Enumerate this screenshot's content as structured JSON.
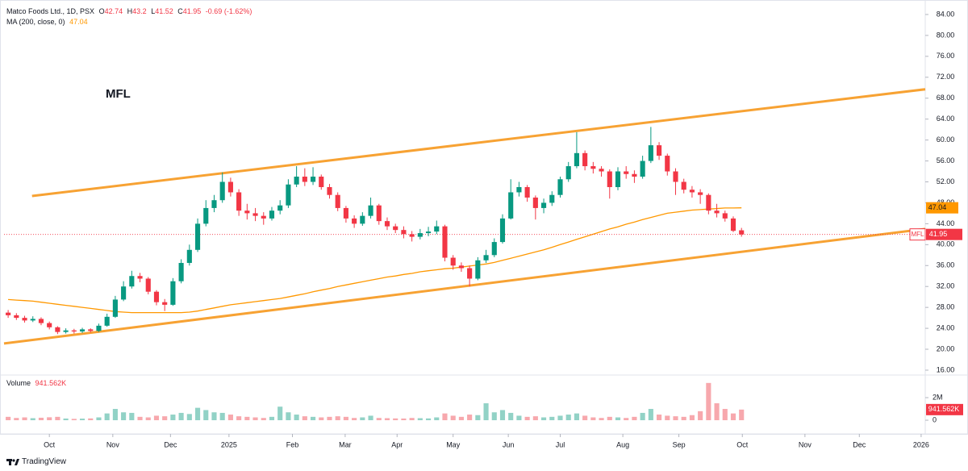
{
  "chart_data": {
    "type": "candlestick",
    "symbol_title": "Matco Foods Ltd., 1D, PSX",
    "symbol": "MFL",
    "ohlc_letters": [
      "O",
      "H",
      "L",
      "C"
    ],
    "change": -0.69,
    "change_pct": {
      "value": -1.62,
      "label": "(-1.62%)"
    },
    "ma_title": "MA (200, close, 0)",
    "volume_title": "Volume",
    "up_color": "#089981",
    "down_color": "#f23645",
    "volume_up_color": "#92d2c6",
    "volume_down_color": "#f7a8ad",
    "ma_color": "#ff9800",
    "trendline_color": "#f7a233",
    "open": [
      27.0,
      26.5,
      26.0,
      25.5,
      25.8,
      25.0,
      24.2,
      23.3,
      23.6,
      23.4,
      23.8,
      23.5,
      24.5,
      26.2,
      29.5,
      32.0,
      34.0,
      33.5,
      31.0,
      29.0,
      28.5,
      33.0,
      36.5,
      39.0,
      44.0,
      47.0,
      48.5,
      52.0,
      50.0,
      46.5,
      46.0,
      45.5,
      45.0,
      46.5,
      47.5,
      51.5,
      53.0,
      52.0,
      53.0,
      51.0,
      49.5,
      47.0,
      45.0,
      44.0,
      45.5,
      47.5,
      44.5,
      43.5,
      42.8,
      42.0,
      41.5,
      42.2,
      42.5,
      43.5,
      37.5,
      36.0,
      35.5,
      33.5,
      37.0,
      38.0,
      40.5,
      45.0,
      50.0,
      51.0,
      49.0,
      47.0,
      48.0,
      49.5,
      52.5,
      55.0,
      57.5,
      55.0,
      54.5,
      54.0,
      51.0,
      54.0,
      53.5,
      53.0,
      56.0,
      59.0,
      57.0,
      54.0,
      52.0,
      50.5,
      50.0,
      49.5,
      46.5,
      46.0,
      45.0,
      42.74
    ],
    "high": [
      27.5,
      26.9,
      26.4,
      26.3,
      26.1,
      25.3,
      24.4,
      24.0,
      23.9,
      24.1,
      24.0,
      24.9,
      26.8,
      30.2,
      33.0,
      35.0,
      34.6,
      33.8,
      31.3,
      29.6,
      33.6,
      37.2,
      40.0,
      45.0,
      48.5,
      49.5,
      53.8,
      52.8,
      50.6,
      47.8,
      47.0,
      46.2,
      47.2,
      48.5,
      52.5,
      55.0,
      54.6,
      54.8,
      53.4,
      51.6,
      50.0,
      47.4,
      45.6,
      46.2,
      49.0,
      47.8,
      45.2,
      44.0,
      43.5,
      42.6,
      43.0,
      43.4,
      44.6,
      43.8,
      38.0,
      36.6,
      36.0,
      37.6,
      39.0,
      41.2,
      45.8,
      52.5,
      52.0,
      51.4,
      49.4,
      48.8,
      50.2,
      53.0,
      55.8,
      61.5,
      58.0,
      55.8,
      55.0,
      54.4,
      54.8,
      55.0,
      54.2,
      57.0,
      62.5,
      59.6,
      57.4,
      54.6,
      52.6,
      51.2,
      50.6,
      49.8,
      47.8,
      46.5,
      45.4,
      43.2
    ],
    "low": [
      26.0,
      25.6,
      25.1,
      25.2,
      24.6,
      23.8,
      22.9,
      23.0,
      23.0,
      23.1,
      23.2,
      23.3,
      24.3,
      26.0,
      29.2,
      31.6,
      32.8,
      30.5,
      28.4,
      27.3,
      28.3,
      32.6,
      36.0,
      38.6,
      43.5,
      46.2,
      48.0,
      49.2,
      45.5,
      44.8,
      44.5,
      43.8,
      44.6,
      45.8,
      47.0,
      51.0,
      51.2,
      51.4,
      50.5,
      48.8,
      46.4,
      44.2,
      43.2,
      43.6,
      45.0,
      43.8,
      42.8,
      42.2,
      41.2,
      40.6,
      41.0,
      41.6,
      42.0,
      36.8,
      35.2,
      34.8,
      32.0,
      33.2,
      36.5,
      37.6,
      40.2,
      44.8,
      49.2,
      48.2,
      44.8,
      46.0,
      47.4,
      49.0,
      52.0,
      54.6,
      54.2,
      53.6,
      53.0,
      48.8,
      50.4,
      52.6,
      51.8,
      52.6,
      55.6,
      56.2,
      53.2,
      49.5,
      49.8,
      49.0,
      47.8,
      45.8,
      45.2,
      44.4,
      42.4,
      41.52
    ],
    "close": [
      26.5,
      26.0,
      25.5,
      25.8,
      25.0,
      24.2,
      23.3,
      23.6,
      23.4,
      23.8,
      23.5,
      24.5,
      26.2,
      29.5,
      32.0,
      34.0,
      33.5,
      31.0,
      29.0,
      28.5,
      33.0,
      36.5,
      39.0,
      44.0,
      47.0,
      48.5,
      52.0,
      50.0,
      46.5,
      46.0,
      45.5,
      45.0,
      46.5,
      47.5,
      51.5,
      53.0,
      52.0,
      53.0,
      51.0,
      49.5,
      47.0,
      45.0,
      44.0,
      45.5,
      47.5,
      44.5,
      43.5,
      42.8,
      42.0,
      41.5,
      42.2,
      42.5,
      43.5,
      37.5,
      36.0,
      35.5,
      33.5,
      37.0,
      38.0,
      40.5,
      45.0,
      50.0,
      51.0,
      49.0,
      47.0,
      48.0,
      49.5,
      52.5,
      55.0,
      57.5,
      55.0,
      54.5,
      54.0,
      51.0,
      54.0,
      53.5,
      53.0,
      56.0,
      59.0,
      57.0,
      54.0,
      52.0,
      50.5,
      50.0,
      49.5,
      46.5,
      46.0,
      45.0,
      42.64,
      41.95
    ],
    "volume": [
      300000,
      200000,
      250000,
      180000,
      220000,
      260000,
      300000,
      150000,
      120000,
      140000,
      160000,
      250000,
      600000,
      1000000,
      700000,
      650000,
      300000,
      250000,
      400000,
      350000,
      500000,
      650000,
      550000,
      1100000,
      900000,
      700000,
      650000,
      500000,
      350000,
      300000,
      250000,
      200000,
      300000,
      1200000,
      700000,
      500000,
      350000,
      300000,
      250000,
      300000,
      350000,
      300000,
      200000,
      250000,
      400000,
      200000,
      180000,
      160000,
      150000,
      200000,
      180000,
      160000,
      250000,
      600000,
      400000,
      300000,
      500000,
      450000,
      1500000,
      700000,
      900000,
      650000,
      400000,
      300000,
      350000,
      250000,
      300000,
      400000,
      500000,
      600000,
      400000,
      250000,
      200000,
      300000,
      250000,
      200000,
      300000,
      650000,
      1000000,
      500000,
      400000,
      350000,
      300000,
      450000,
      800000,
      3300000,
      1500000,
      1000000,
      600000,
      941562
    ],
    "volume_value_labels": {
      "89": "941.562K"
    },
    "ma": [
      29.5,
      29.4,
      29.3,
      29.2,
      29.0,
      28.8,
      28.6,
      28.4,
      28.2,
      28.0,
      27.8,
      27.6,
      27.4,
      27.2,
      27.1,
      27.0,
      27.0,
      27.0,
      27.0,
      27.0,
      27.0,
      27.0,
      27.1,
      27.3,
      27.6,
      27.9,
      28.2,
      28.5,
      28.7,
      28.9,
      29.1,
      29.3,
      29.5,
      29.7,
      30.0,
      30.3,
      30.6,
      31.0,
      31.3,
      31.6,
      32.0,
      32.3,
      32.6,
      32.9,
      33.2,
      33.5,
      33.8,
      34.0,
      34.3,
      34.5,
      34.8,
      35.0,
      35.2,
      35.4,
      35.5,
      35.7,
      35.9,
      36.1,
      36.3,
      36.6,
      37.0,
      37.4,
      37.8,
      38.2,
      38.6,
      39.0,
      39.5,
      40.0,
      40.5,
      41.0,
      41.5,
      42.0,
      42.5,
      43.0,
      43.4,
      43.9,
      44.3,
      44.8,
      45.2,
      45.6,
      46.0,
      46.2,
      46.4,
      46.6,
      46.7,
      46.8,
      46.9,
      47.0,
      47.0,
      47.04
    ],
    "trendlines": [
      {
        "x": [
          2.9,
          111.3
        ],
        "y": [
          49.3,
          69.7
        ]
      },
      {
        "x": [
          -0.5,
          111.3
        ],
        "y": [
          21.1,
          43.0
        ]
      }
    ],
    "xlim": [
      -0.5,
      111.3
    ],
    "xticks": [
      {
        "value": 5,
        "label": "Oct"
      },
      {
        "value": 12.7,
        "label": "Nov"
      },
      {
        "value": 19.7,
        "label": "Dec"
      },
      {
        "value": 26.8,
        "label": "2025"
      },
      {
        "value": 34.5,
        "label": "Feb"
      },
      {
        "value": 40.9,
        "label": "Mar"
      },
      {
        "value": 47.2,
        "label": "Apr"
      },
      {
        "value": 54,
        "label": "May"
      },
      {
        "value": 60.7,
        "label": "Jun"
      },
      {
        "value": 67,
        "label": "Jul"
      },
      {
        "value": 74.6,
        "label": "Aug"
      },
      {
        "value": 81.4,
        "label": "Sep"
      },
      {
        "value": 89.1,
        "label": "Oct"
      },
      {
        "value": 96.7,
        "label": "Nov"
      },
      {
        "value": 103.3,
        "label": "Dec"
      },
      {
        "value": 110.8,
        "label": "2026"
      }
    ],
    "ylim": [
      15.07,
      86.0
    ],
    "yticks": [
      {
        "value": 16,
        "label": "16.00"
      },
      {
        "value": 20,
        "label": "20.00"
      },
      {
        "value": 24,
        "label": "24.00"
      },
      {
        "value": 28,
        "label": "28.00"
      },
      {
        "value": 32,
        "label": "32.00"
      },
      {
        "value": 36,
        "label": "36.00"
      },
      {
        "value": 40,
        "label": "40.00"
      },
      {
        "value": 44,
        "label": "44.00"
      },
      {
        "value": 48,
        "label": "48.00"
      },
      {
        "value": 52,
        "label": "52.00"
      },
      {
        "value": 56,
        "label": "56.00"
      },
      {
        "value": 60,
        "label": "60.00"
      },
      {
        "value": 64,
        "label": "64.00"
      },
      {
        "value": 68,
        "label": "68.00"
      },
      {
        "value": 72,
        "label": "72.00"
      },
      {
        "value": 76,
        "label": "76.00"
      },
      {
        "value": 80,
        "label": "80.00"
      },
      {
        "value": 84,
        "label": "84.00"
      }
    ],
    "volume_ylim": [
      -640000,
      3930000
    ],
    "volume_yticks": [
      0,
      {
        "value": 2000000,
        "label": "2M"
      }
    ],
    "brand": "TradingView"
  }
}
